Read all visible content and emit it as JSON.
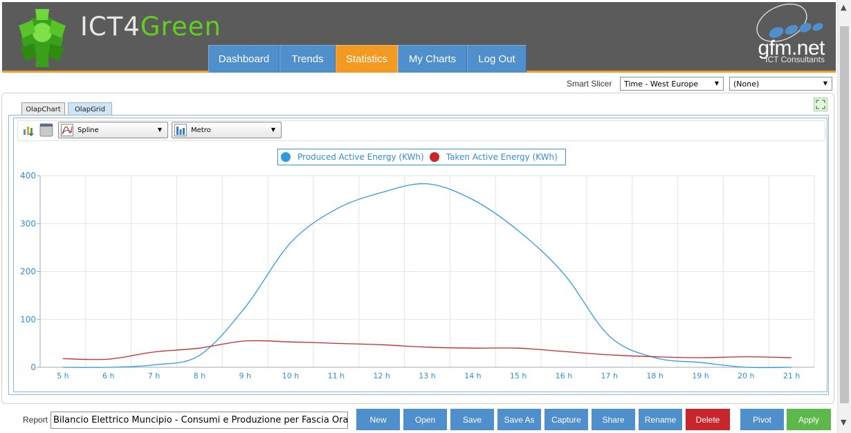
{
  "header": {
    "logo_ict": "ICT4",
    "logo_green": "Green",
    "brand_name": "gfm.net",
    "brand_sub": "ICT Consultants",
    "nav": [
      {
        "label": "Dashboard"
      },
      {
        "label": "Trends"
      },
      {
        "label": "Statistics",
        "active": true
      },
      {
        "label": "My Charts"
      },
      {
        "label": "Log Out"
      }
    ]
  },
  "slicer": {
    "label": "Smart Slicer",
    "time_value": "Time - West Europe",
    "second_value": "(None)"
  },
  "tabs": [
    {
      "label": "OlapChart",
      "active": true
    },
    {
      "label": "OlapGrid",
      "active": false
    }
  ],
  "toolbar": {
    "chart_type": "Spline",
    "style": "Metro"
  },
  "colors": {
    "accent_blue": "#4f8fcb",
    "accent_orange": "#f29a22",
    "series_produced": "#2e9be0",
    "series_taken": "#c8262b"
  },
  "chart_data": {
    "type": "line",
    "spline": true,
    "x": [
      "5 h",
      "6 h",
      "7 h",
      "8 h",
      "9 h",
      "10 h",
      "11 h",
      "12 h",
      "13 h",
      "14 h",
      "15 h",
      "16 h",
      "17 h",
      "18 h",
      "19 h",
      "20 h",
      "21 h"
    ],
    "series": [
      {
        "name": "Produced Active Energy (KWh)",
        "color": "#2e9be0",
        "values": [
          0,
          0,
          5,
          25,
          125,
          260,
          330,
          365,
          383,
          350,
          285,
          195,
          65,
          20,
          10,
          0,
          0
        ]
      },
      {
        "name": "Taken Active Energy (KWh)",
        "color": "#c8262b",
        "values": [
          18,
          17,
          32,
          40,
          55,
          53,
          50,
          47,
          42,
          40,
          40,
          33,
          26,
          22,
          20,
          22,
          20
        ]
      }
    ],
    "yticks": [
      "0",
      "100",
      "200",
      "300",
      "400"
    ],
    "ylim": [
      0,
      400
    ],
    "grid": true,
    "legend": "top-center"
  },
  "footer": {
    "report_label": "Report",
    "report_value": "Bilancio Elettrico Muncipio - Consumi e Produzione per Fascia Oraria",
    "buttons": [
      {
        "label": "New"
      },
      {
        "label": "Open"
      },
      {
        "label": "Save"
      },
      {
        "label": "Save As"
      },
      {
        "label": "Capture"
      },
      {
        "label": "Share"
      },
      {
        "label": "Rename"
      },
      {
        "label": "Delete"
      },
      {
        "label": "Pivot"
      },
      {
        "label": "Apply"
      }
    ]
  }
}
